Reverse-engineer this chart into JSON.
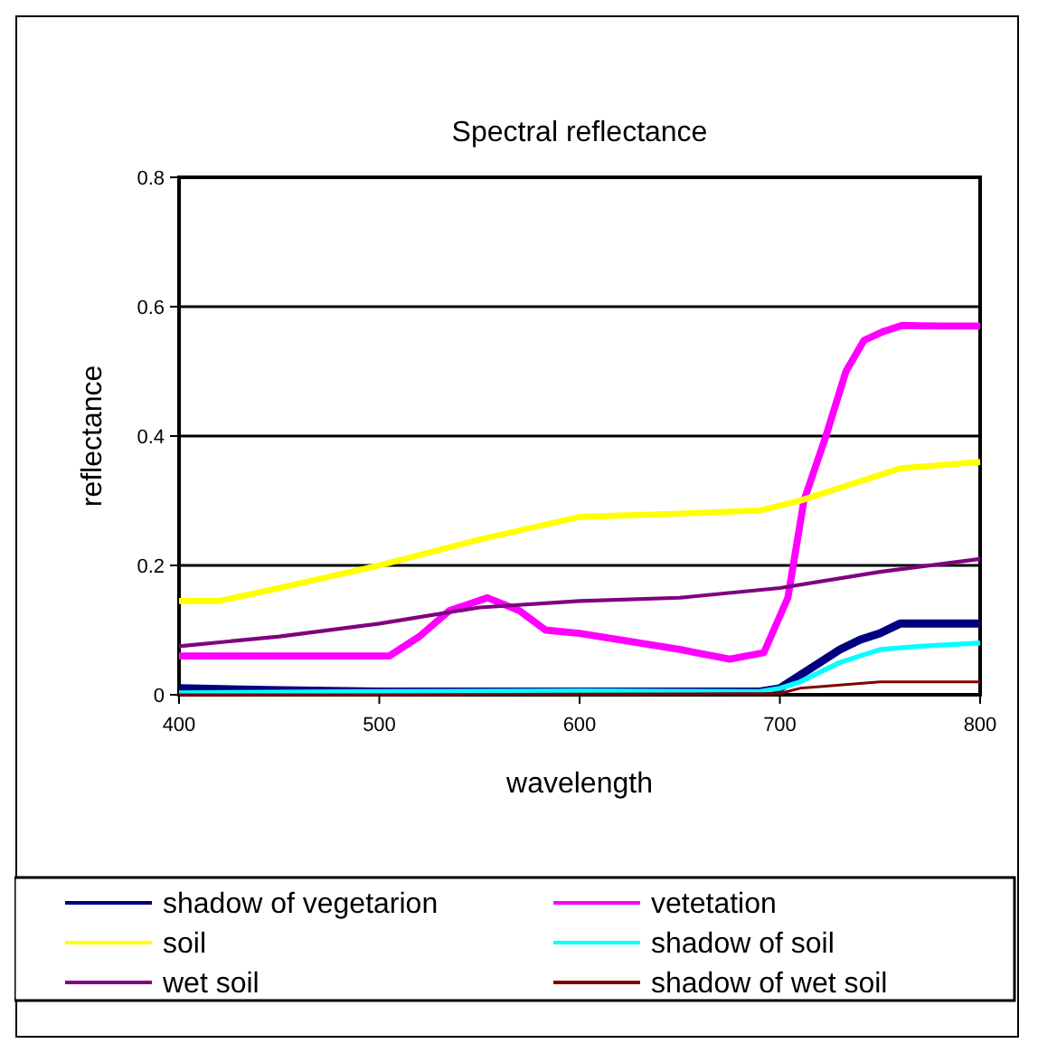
{
  "chart_data": {
    "type": "line",
    "title": "Spectral reflectance",
    "xlabel": "wavelength",
    "ylabel": "reflectance",
    "xlim": [
      400,
      800
    ],
    "ylim": [
      0,
      0.8
    ],
    "xticks": [
      400,
      500,
      600,
      700,
      800
    ],
    "yticks": [
      0,
      0.2,
      0.4,
      0.6,
      0.8
    ],
    "grid": "y",
    "legend": "bottom",
    "marker": "none",
    "line_style": "solid",
    "series": [
      {
        "name": "shadow of vegetarion",
        "color": "#000080",
        "x": [
          400,
          450,
          500,
          600,
          690,
          700,
          710,
          720,
          730,
          740,
          750,
          760,
          780,
          800
        ],
        "values": [
          0.01,
          0.007,
          0.005,
          0.005,
          0.005,
          0.01,
          0.03,
          0.05,
          0.07,
          0.085,
          0.095,
          0.11,
          0.11,
          0.11
        ]
      },
      {
        "name": "vetetation",
        "color": "#ff00ff",
        "x": [
          400,
          450,
          505,
          520,
          535,
          554,
          570,
          583,
          600,
          650,
          675,
          692,
          704,
          712,
          723,
          733,
          742,
          752,
          761,
          780,
          800
        ],
        "values": [
          0.06,
          0.06,
          0.06,
          0.09,
          0.13,
          0.15,
          0.13,
          0.1,
          0.095,
          0.07,
          0.055,
          0.065,
          0.15,
          0.3,
          0.4,
          0.5,
          0.548,
          0.562,
          0.571,
          0.57,
          0.57
        ]
      },
      {
        "name": "soil",
        "color": "#ffff00",
        "x": [
          400,
          420,
          450,
          500,
          550,
          600,
          650,
          690,
          710,
          740,
          760,
          800
        ],
        "values": [
          0.145,
          0.145,
          0.165,
          0.2,
          0.24,
          0.275,
          0.28,
          0.285,
          0.3,
          0.33,
          0.35,
          0.36
        ]
      },
      {
        "name": "shadow of soil",
        "color": "#00ffff",
        "x": [
          400,
          500,
          600,
          690,
          700,
          710,
          720,
          730,
          750,
          770,
          800
        ],
        "values": [
          0.003,
          0.005,
          0.006,
          0.005,
          0.01,
          0.02,
          0.035,
          0.05,
          0.07,
          0.075,
          0.08
        ]
      },
      {
        "name": "wet soil",
        "color": "#800080",
        "x": [
          400,
          450,
          500,
          550,
          600,
          650,
          700,
          750,
          800
        ],
        "values": [
          0.075,
          0.09,
          0.11,
          0.135,
          0.145,
          0.15,
          0.165,
          0.19,
          0.21
        ]
      },
      {
        "name": "shadow of wet soil",
        "color": "#800000",
        "x": [
          400,
          500,
          600,
          700,
          710,
          750,
          800
        ],
        "values": [
          0.0,
          0.0,
          0.001,
          0.002,
          0.01,
          0.02,
          0.02
        ]
      }
    ]
  }
}
